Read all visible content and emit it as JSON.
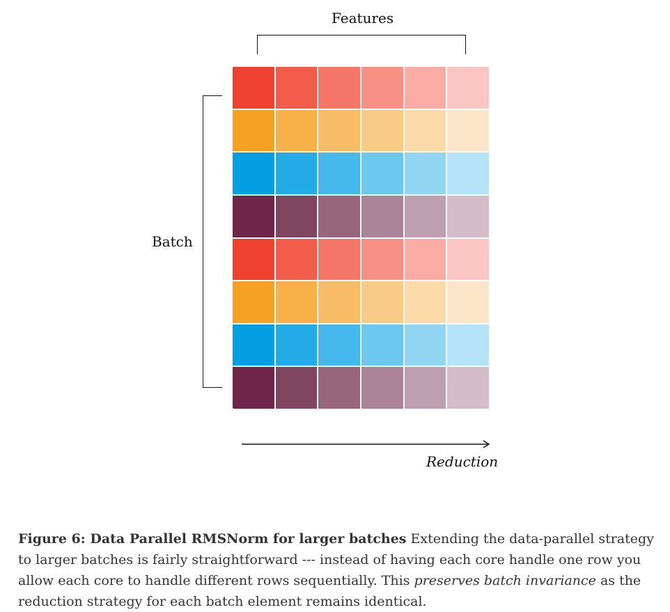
{
  "diagram": {
    "top_label": "Features",
    "left_label": "Batch",
    "arrow_label": "Reduction",
    "grid": {
      "columns": 6,
      "rows": [
        [
          "#EF4130",
          "#F25C4B",
          "#F47767",
          "#F79185",
          "#F9ABA4",
          "#FBC5C1"
        ],
        [
          "#F5A124",
          "#F7B04A",
          "#F8BC66",
          "#FACB87",
          "#FBD9A8",
          "#FCE5C8"
        ],
        [
          "#049FE3",
          "#23ABE8",
          "#45B8EC",
          "#6DC8F0",
          "#91D5F3",
          "#B4E2F7"
        ],
        [
          "#70264B",
          "#81465F",
          "#976679",
          "#AA8497",
          "#BE9FB0",
          "#D4BDC9"
        ],
        [
          "#EF4130",
          "#F25C4B",
          "#F47767",
          "#F79185",
          "#F9ABA4",
          "#FBC5C1"
        ],
        [
          "#F5A124",
          "#F7B04A",
          "#F8BC66",
          "#FACB87",
          "#FBD9A8",
          "#FCE5C8"
        ],
        [
          "#049FE3",
          "#23ABE8",
          "#45B8EC",
          "#6DC8F0",
          "#91D5F3",
          "#B4E2F7"
        ],
        [
          "#70264B",
          "#81465F",
          "#976679",
          "#AA8497",
          "#BE9FB0",
          "#D4BDC9"
        ]
      ]
    }
  },
  "caption": {
    "title": "Figure 6: Data Parallel RMSNorm for larger batches",
    "text_1": " Extending the data-parallel strategy to larger batches is fairly straightforward --- instead of having each core handle one row you allow each core to handle different rows sequentially. This ",
    "emphasis": "preserves batch invariance",
    "text_2": " as the reduction strategy for each batch element remains identical."
  }
}
